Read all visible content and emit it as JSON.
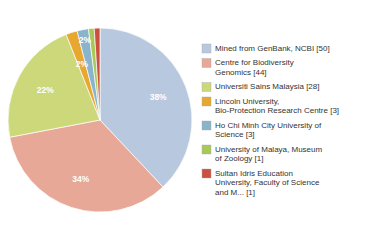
{
  "chart_data": {
    "type": "pie",
    "categories": [
      "Mined from GenBank, NCBI [50]",
      "Centre for Biodiversity\nGenomics [44]",
      "Universiti Sains Malaysia [28]",
      "Lincoln University,\nBio-Protection Research Centre [3]",
      "Ho Chi Minh City University of\nScience [3]",
      "University of Malaya, Museum\nof Zoology [1]",
      "Sultan Idris Education\nUniversity, Faculty of Science\nand M... [1]"
    ],
    "values": [
      38,
      34,
      22,
      2,
      2,
      1,
      1
    ],
    "value_labels": [
      "38%",
      "34%",
      "22%",
      "2%",
      "2%",
      null,
      null
    ],
    "colors": [
      "#b8c9df",
      "#e8a898",
      "#ccd87a",
      "#e8a830",
      "#8ab4cc",
      "#a8c858",
      "#cc5040"
    ],
    "data_labels": true,
    "legend": "right"
  }
}
